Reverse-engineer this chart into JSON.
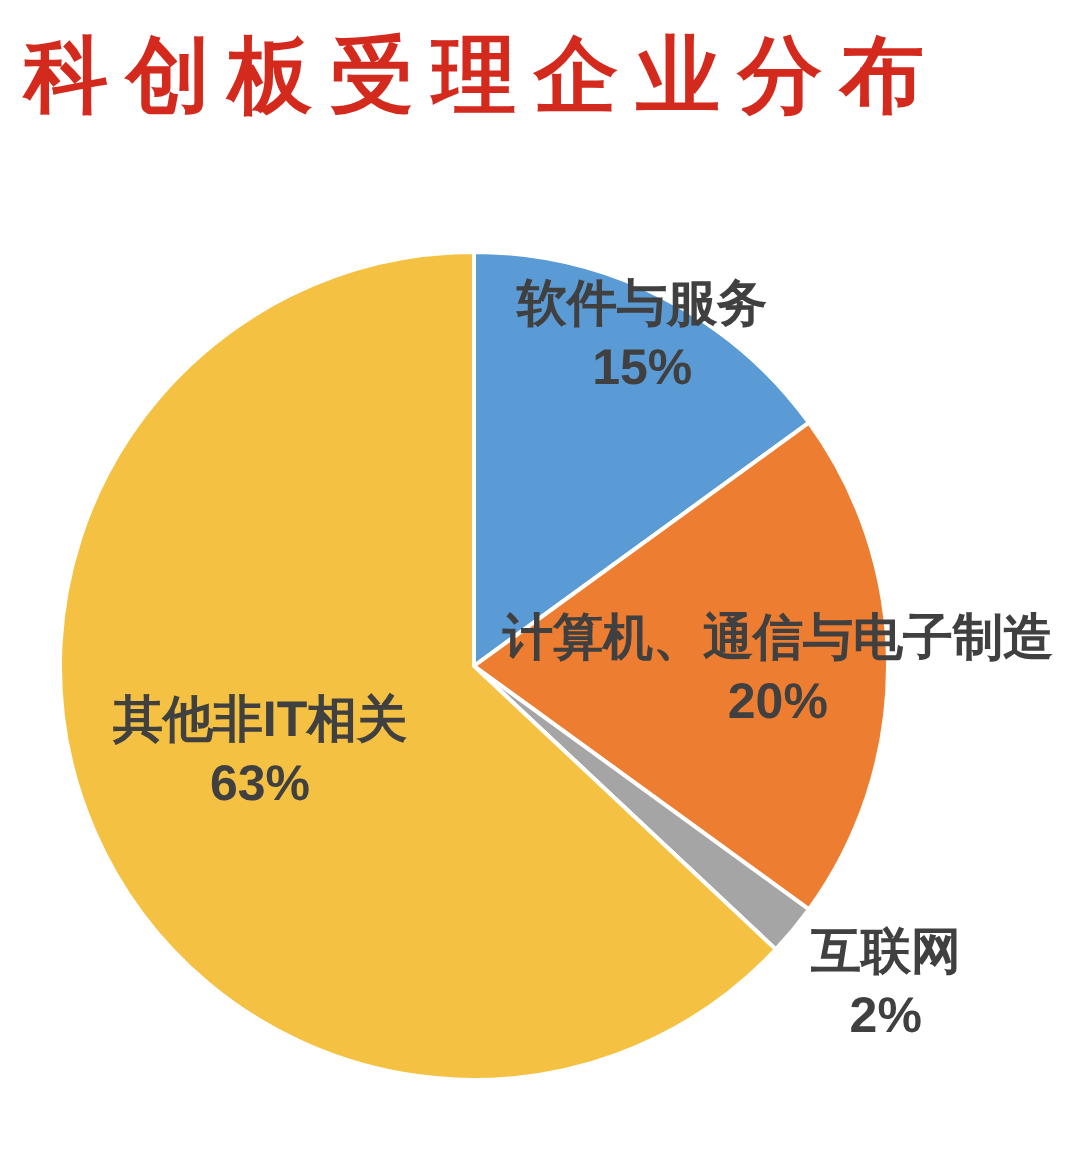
{
  "chart_data": {
    "type": "pie",
    "title": "科创板受理企业分布",
    "categories": [
      "软件与服务",
      "计算机、通信与电子制造",
      "互联网",
      "其他非IT相关"
    ],
    "values": [
      15,
      20,
      2,
      63
    ],
    "value_labels": [
      "15%",
      "20%",
      "2%",
      "63%"
    ],
    "colors": [
      "#5b9bd5",
      "#ed7d31",
      "#a5a5a5",
      "#f4c142"
    ]
  }
}
